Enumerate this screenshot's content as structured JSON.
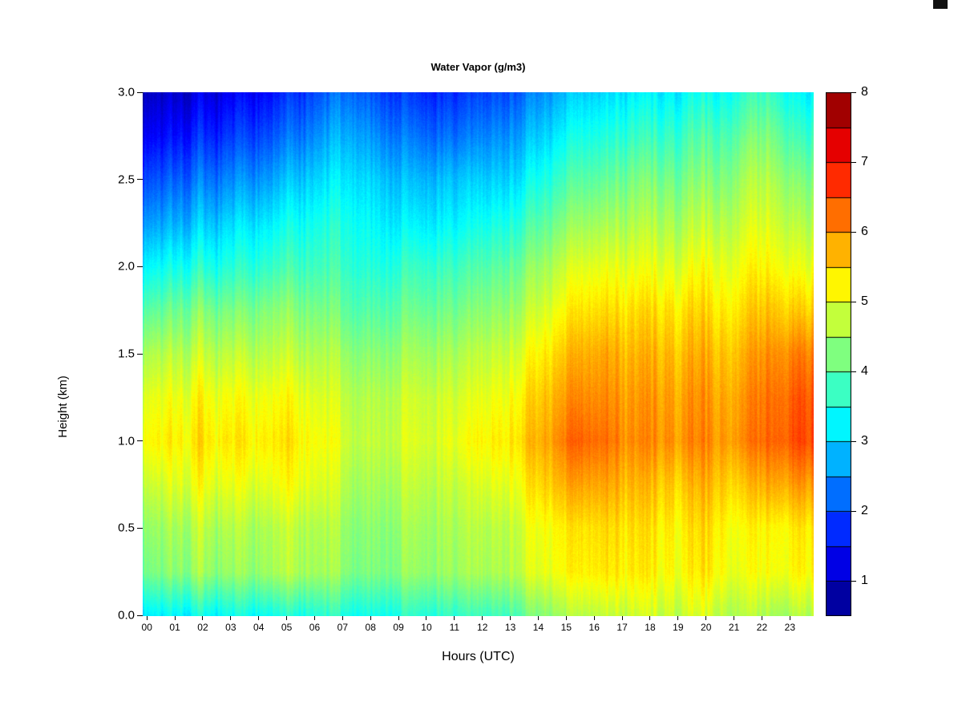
{
  "chart_data": {
    "type": "heatmap",
    "title": "Water Vapor (g/m3)",
    "xlabel": "Hours (UTC)",
    "ylabel": "Height (km)",
    "x_hours": [
      0,
      1,
      2,
      3,
      4,
      5,
      6,
      7,
      8,
      9,
      10,
      11,
      12,
      13,
      14,
      15,
      16,
      17,
      18,
      19,
      20,
      21,
      22,
      23
    ],
    "x_tick_labels": [
      "00",
      "01",
      "02",
      "03",
      "04",
      "05",
      "06",
      "07",
      "08",
      "09",
      "10",
      "11",
      "12",
      "13",
      "14",
      "15",
      "16",
      "17",
      "18",
      "19",
      "20",
      "21",
      "22",
      "23"
    ],
    "y_heights": [
      0.0,
      0.25,
      0.5,
      0.75,
      1.0,
      1.25,
      1.5,
      1.75,
      2.0,
      2.25,
      2.5,
      2.75,
      3.0
    ],
    "y_tick_values": [
      0.0,
      0.5,
      1.0,
      1.5,
      2.0,
      2.5,
      3.0
    ],
    "y_tick_labels": [
      "0.0",
      "0.5",
      "1.0",
      "1.5",
      "2.0",
      "2.5",
      "3.0"
    ],
    "z_units": "g/m3",
    "zmin": 0.5,
    "zmax": 8.0,
    "colorbar_ticks": [
      1,
      2,
      3,
      4,
      5,
      6,
      7,
      8
    ],
    "colorbar_segments": 15,
    "colormap": "jet",
    "colormap_anchor_colors": [
      "#00008f",
      "#0000ff",
      "#00ffff",
      "#80ff80",
      "#ffff00",
      "#ff8000",
      "#ff0000",
      "#800000"
    ],
    "values": [
      [
        3.2,
        3.3,
        3.4,
        3.4,
        3.5,
        3.5,
        3.6,
        3.5,
        3.4,
        3.5,
        3.6,
        3.7,
        3.8,
        4.0,
        4.3,
        4.6,
        4.7,
        4.8,
        4.8,
        4.9,
        4.7,
        4.6,
        4.5,
        4.6
      ],
      [
        4.2,
        4.4,
        4.5,
        4.4,
        4.6,
        4.6,
        4.5,
        4.3,
        4.2,
        4.3,
        4.4,
        4.5,
        4.6,
        4.8,
        5.0,
        5.2,
        5.3,
        5.3,
        5.2,
        5.3,
        5.2,
        5.0,
        5.1,
        5.2
      ],
      [
        4.4,
        4.6,
        4.7,
        4.6,
        4.7,
        4.7,
        4.6,
        4.4,
        4.3,
        4.4,
        4.5,
        4.6,
        4.7,
        4.9,
        5.1,
        5.3,
        5.4,
        5.4,
        5.3,
        5.4,
        5.3,
        5.1,
        5.2,
        5.3
      ],
      [
        4.8,
        5.0,
        5.1,
        5.0,
        5.1,
        5.1,
        4.9,
        4.6,
        4.5,
        4.6,
        4.7,
        4.8,
        5.0,
        5.2,
        5.5,
        5.8,
        5.8,
        5.7,
        5.6,
        5.7,
        5.6,
        5.5,
        5.8,
        5.9
      ],
      [
        5.2,
        5.3,
        5.4,
        5.3,
        5.4,
        5.3,
        5.1,
        4.8,
        4.7,
        4.8,
        4.9,
        5.1,
        5.3,
        5.5,
        5.8,
        6.3,
        6.2,
        6.0,
        6.0,
        6.1,
        5.9,
        6.0,
        6.3,
        6.5
      ],
      [
        5.0,
        5.1,
        5.2,
        5.1,
        5.2,
        5.1,
        4.9,
        4.7,
        4.6,
        4.7,
        4.8,
        4.9,
        5.1,
        5.3,
        5.6,
        6.0,
        6.0,
        5.9,
        5.9,
        6.0,
        5.8,
        5.9,
        6.2,
        6.4
      ],
      [
        4.6,
        4.7,
        4.8,
        4.7,
        4.8,
        4.7,
        4.6,
        4.4,
        4.3,
        4.4,
        4.5,
        4.6,
        4.8,
        5.0,
        5.3,
        5.7,
        5.8,
        5.7,
        5.7,
        5.8,
        5.6,
        5.7,
        6.0,
        6.1
      ],
      [
        4.0,
        4.2,
        4.3,
        4.2,
        4.4,
        4.3,
        4.2,
        4.0,
        3.9,
        4.0,
        4.1,
        4.2,
        4.4,
        4.6,
        4.9,
        5.3,
        5.4,
        5.4,
        5.4,
        5.5,
        5.3,
        5.4,
        5.6,
        5.5
      ],
      [
        3.3,
        3.5,
        3.6,
        3.6,
        3.8,
        3.8,
        3.8,
        3.7,
        3.5,
        3.6,
        3.7,
        3.8,
        4.0,
        4.2,
        4.5,
        4.9,
        5.0,
        5.0,
        5.0,
        5.1,
        5.0,
        5.1,
        5.2,
        5.0
      ],
      [
        2.6,
        2.8,
        3.0,
        3.1,
        3.3,
        3.4,
        3.5,
        3.5,
        3.2,
        3.1,
        3.2,
        3.3,
        3.5,
        3.7,
        4.0,
        4.4,
        4.5,
        4.6,
        4.6,
        4.7,
        4.6,
        4.8,
        4.9,
        4.6
      ],
      [
        2.0,
        2.2,
        2.4,
        2.5,
        2.7,
        2.9,
        3.1,
        3.2,
        2.9,
        2.7,
        2.8,
        2.9,
        3.0,
        3.2,
        3.5,
        3.9,
        4.0,
        4.2,
        4.2,
        4.3,
        4.2,
        4.5,
        4.6,
        4.2
      ],
      [
        1.4,
        1.6,
        1.8,
        1.9,
        2.1,
        2.3,
        2.6,
        2.8,
        2.4,
        2.2,
        2.2,
        2.3,
        2.5,
        2.7,
        3.0,
        3.4,
        3.5,
        3.7,
        3.7,
        3.9,
        3.8,
        4.1,
        4.2,
        3.7
      ],
      [
        1.0,
        1.1,
        1.3,
        1.4,
        1.6,
        1.8,
        2.1,
        2.3,
        1.9,
        1.7,
        1.7,
        1.8,
        2.0,
        2.2,
        2.5,
        2.9,
        3.0,
        3.2,
        3.2,
        3.4,
        3.3,
        3.6,
        3.7,
        3.2
      ]
    ]
  }
}
